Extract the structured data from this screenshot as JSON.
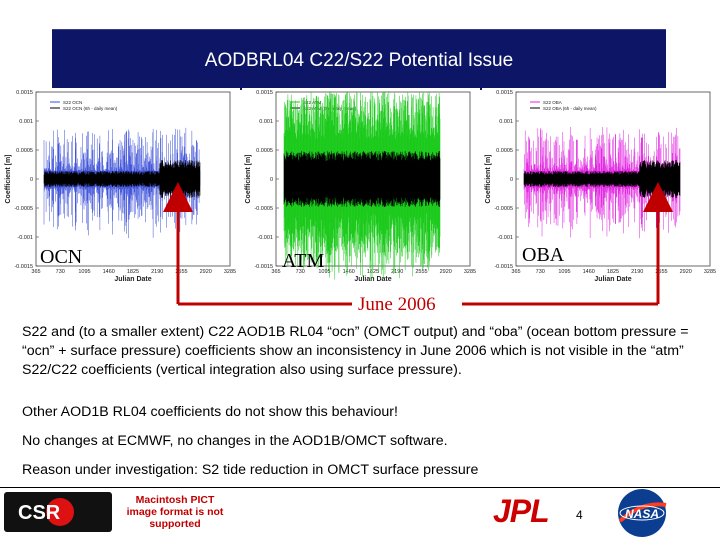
{
  "slide": {
    "title": "AODBRL04 C22/S22 Potential Issue",
    "page_number": "4"
  },
  "panels": [
    {
      "label": "OCN",
      "y_axis_label": "Coefficient [m]",
      "x_axis_label": "Julian Date",
      "legend": [
        "S22 OCN",
        "S22 OCN (6h - daily mean)"
      ],
      "y_ticks": [
        "0.0015",
        "0.001",
        "0.0005",
        "0",
        "-0.0005",
        "-0.001",
        "-0.0015"
      ],
      "x_ticks": [
        "365",
        "730",
        "1095",
        "1460",
        "1825",
        "2190",
        "2555",
        "2920",
        "3285"
      ],
      "series_color": "#3b4fd8"
    },
    {
      "label": "ATM",
      "y_axis_label": "Coefficient [m]",
      "x_axis_label": "Julian Date",
      "legend": [
        "S22 ATM",
        "S22 ATM (6h - daily mean)"
      ],
      "y_ticks": [
        "0.0015",
        "0.001",
        "0.0005",
        "0",
        "-0.0005",
        "-0.001",
        "-0.0015"
      ],
      "x_ticks": [
        "365",
        "730",
        "1095",
        "1460",
        "1825",
        "2190",
        "2555",
        "2920",
        "3285"
      ],
      "series_color": "#14c814"
    },
    {
      "label": "OBA",
      "y_axis_label": "Coefficient [m]",
      "x_axis_label": "Julian Date",
      "legend": [
        "S22 OBA",
        "S22 OBA (6h - daily mean)"
      ],
      "y_ticks": [
        "0.0015",
        "0.001",
        "0.0005",
        "0",
        "-0.0005",
        "-0.001",
        "-0.0015"
      ],
      "x_ticks": [
        "365",
        "730",
        "1095",
        "1460",
        "1825",
        "2190",
        "2555",
        "2920",
        "3285"
      ],
      "series_color": "#e020e0"
    }
  ],
  "annotation": {
    "text": "June 2006",
    "color": "#c00000"
  },
  "body": {
    "p1": "S22 and (to a smaller extent) C22 AOD1B RL04 “ocn” (OMCT output) and “oba” (ocean bottom pressure = “ocn” + surface pressure) coefficients show an inconsistency in June 2006 which is not visible in the “atm” S22/C22 coefficients (vertical integration also using surface pressure).",
    "p2": "Other AOD1B RL04 coefficients do not show this behaviour!",
    "p3": "No changes at ECMWF, no changes in the AOD1B/OMCT software.",
    "p4": "Reason under investigation: S2 tide reduction in OMCT surface pressure"
  },
  "footer": {
    "csr_logo_text": "CSR",
    "pict_notice": "Macintosh PICT image format is not supported",
    "jpl_logo_text": "JPL",
    "nasa_logo_text": "NASA"
  },
  "colors": {
    "title_bg": "#0d1566",
    "title_text": "#ffffff",
    "arrow": "#c00000"
  }
}
